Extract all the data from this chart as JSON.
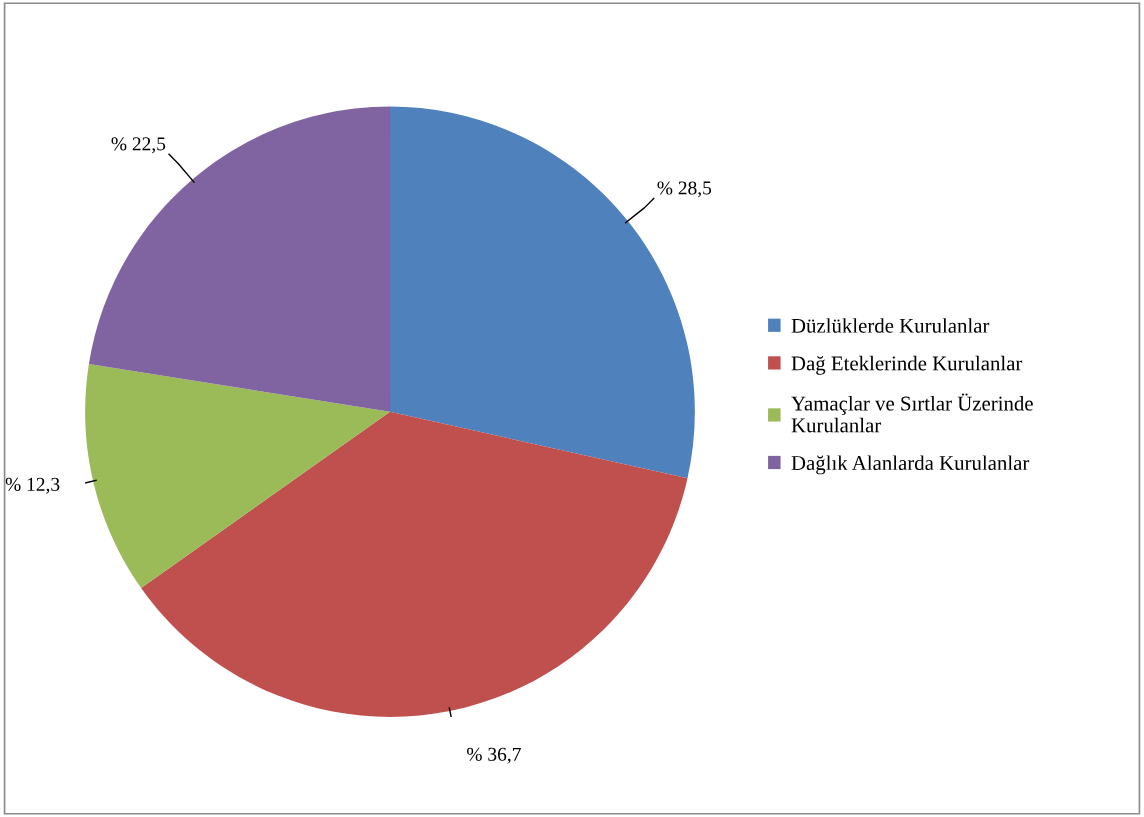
{
  "chart_data": {
    "type": "pie",
    "categories": [
      "Düzlüklerde Kurulanlar",
      "Dağ Eteklerinde Kurulanlar",
      "Yamaçlar ve Sırtlar Üzerinde\nKurulanlar",
      "Dağlık Alanlarda Kurulanlar"
    ],
    "values": [
      28.5,
      36.7,
      12.3,
      22.5
    ],
    "value_labels": [
      "% 28,5",
      "% 36,7",
      "% 12,3",
      "% 22,5"
    ],
    "colors": [
      "#4f81bd",
      "#c0504d",
      "#9bbb59",
      "#8064a2"
    ],
    "legend": "right"
  }
}
